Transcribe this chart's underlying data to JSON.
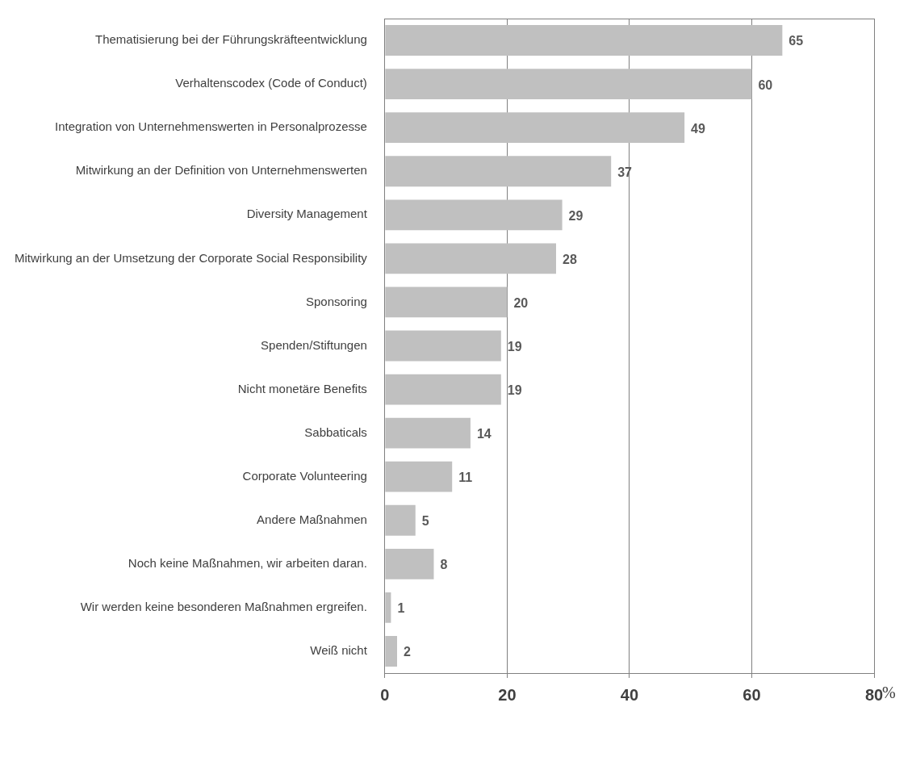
{
  "chart_data": {
    "type": "bar",
    "orientation": "horizontal",
    "categories": [
      "Thematisierung bei der Führungskräfteentwicklung",
      "Verhaltenscodex (Code of Conduct)",
      "Integration von Unternehmenswerten in Personalprozesse",
      "Mitwirkung an der Definition von Unternehmenswerten",
      "Diversity Management",
      "Mitwirkung an der Umsetzung der Corporate Social Responsibility",
      "Sponsoring",
      "Spenden/Stiftungen",
      "Nicht monetäre Benefits",
      "Sabbaticals",
      "Corporate Volunteering",
      "Andere Maßnahmen",
      "Noch keine Maßnahmen, wir arbeiten daran.",
      "Wir werden keine besonderen Maßnahmen ergreifen.",
      "Weiß nicht"
    ],
    "values": [
      65,
      60,
      49,
      37,
      29,
      28,
      20,
      19,
      19,
      14,
      11,
      5,
      8,
      1,
      2
    ],
    "color": "#c0c0c0",
    "xlim": [
      0,
      80
    ],
    "xticks": [
      0,
      20,
      40,
      60,
      80
    ],
    "xlabel": "%",
    "grid": "x",
    "data_labels": true
  }
}
